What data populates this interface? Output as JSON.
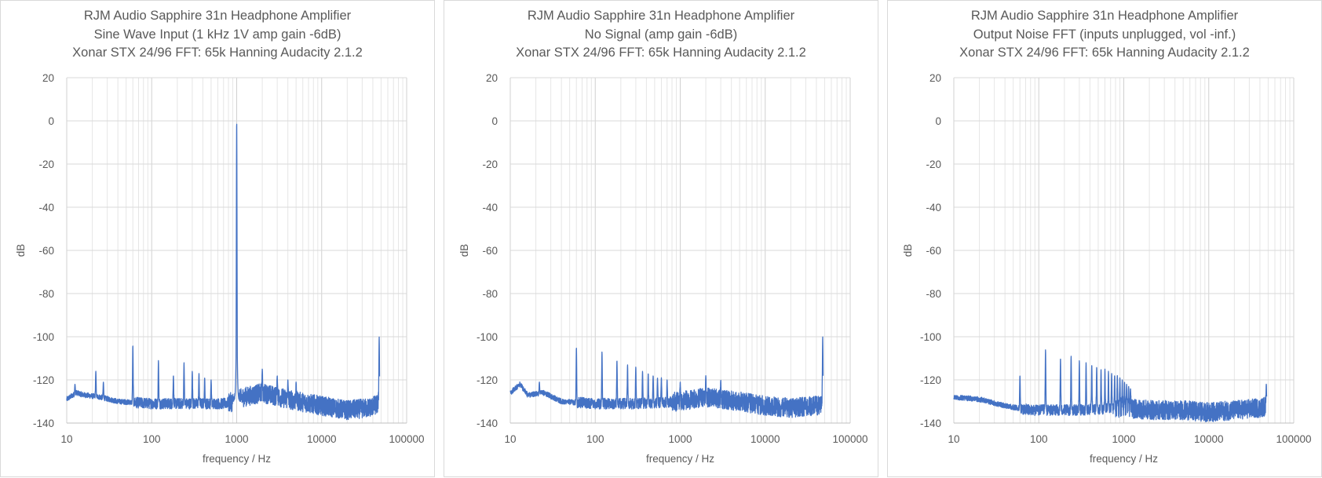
{
  "chart_data": [
    {
      "type": "line",
      "title": [
        "RJM Audio Sapphire 31n Headphone Amplifier",
        "Sine Wave Input (1 kHz 1V amp gain -6dB)",
        "Xonar STX 24/96 FFT: 65k Hanning Audacity  2.1.2"
      ],
      "xlabel": "frequency / Hz",
      "ylabel": "dB",
      "xscale": "log",
      "xlim": [
        10,
        100000
      ],
      "ylim": [
        -140,
        20
      ],
      "xticks": [
        "10",
        "100",
        "1000",
        "10000",
        "100000"
      ],
      "yticks": [
        "20",
        "0",
        "-20",
        "-40",
        "-60",
        "-80",
        "-100",
        "-120",
        "-140"
      ],
      "grid": true,
      "legend": "none",
      "series": [
        {
          "color": "#4472c4",
          "base_floor": [
            [
              10,
              -129
            ],
            [
              13,
              -126
            ],
            [
              16,
              -127
            ],
            [
              25,
              -128
            ],
            [
              40,
              -130
            ],
            [
              100,
              -131
            ],
            [
              300,
              -131
            ],
            [
              700,
              -131
            ],
            [
              950,
              -130
            ],
            [
              1200,
              -128
            ],
            [
              2000,
              -126
            ],
            [
              4000,
              -129
            ],
            [
              10000,
              -132
            ],
            [
              20000,
              -134
            ],
            [
              35000,
              -133
            ],
            [
              48000,
              -131
            ]
          ],
          "peaks": [
            [
              12.5,
              -122
            ],
            [
              22,
              -116
            ],
            [
              27,
              -121
            ],
            [
              60,
              -104
            ],
            [
              120,
              -111
            ],
            [
              180,
              -118
            ],
            [
              240,
              -112
            ],
            [
              300,
              -116
            ],
            [
              360,
              -117
            ],
            [
              420,
              -119
            ],
            [
              500,
              -120
            ],
            [
              1000,
              0
            ],
            [
              2000,
              -115
            ],
            [
              3000,
              -118
            ],
            [
              4000,
              -120
            ],
            [
              5000,
              -121
            ],
            [
              47500,
              -100
            ]
          ]
        }
      ]
    },
    {
      "type": "line",
      "title": [
        "RJM Audio Sapphire 31n Headphone Amplifier",
        "No Signal (amp gain -6dB)",
        "Xonar STX 24/96 FFT: 65k Hanning Audacity  2.1.2"
      ],
      "xlabel": "frequency / Hz",
      "ylabel": "dB",
      "xscale": "log",
      "xlim": [
        10,
        100000
      ],
      "ylim": [
        -140,
        20
      ],
      "xticks": [
        "10",
        "100",
        "1000",
        "10000",
        "100000"
      ],
      "yticks": [
        "20",
        "0",
        "-20",
        "-40",
        "-60",
        "-80",
        "-100",
        "-120",
        "-140"
      ],
      "grid": true,
      "legend": "none",
      "series": [
        {
          "color": "#4472c4",
          "base_floor": [
            [
              10,
              -126
            ],
            [
              13,
              -122
            ],
            [
              16,
              -127
            ],
            [
              25,
              -126
            ],
            [
              40,
              -130
            ],
            [
              100,
              -131
            ],
            [
              300,
              -131
            ],
            [
              1000,
              -130
            ],
            [
              2000,
              -128
            ],
            [
              5000,
              -130
            ],
            [
              10000,
              -132
            ],
            [
              20000,
              -133
            ],
            [
              40000,
              -132
            ],
            [
              48000,
              -131
            ]
          ],
          "peaks": [
            [
              12.5,
              -122
            ],
            [
              22,
              -121
            ],
            [
              60,
              -105
            ],
            [
              120,
              -107
            ],
            [
              180,
              -111
            ],
            [
              240,
              -113
            ],
            [
              300,
              -114
            ],
            [
              360,
              -116
            ],
            [
              420,
              -117
            ],
            [
              480,
              -118
            ],
            [
              540,
              -119
            ],
            [
              600,
              -119
            ],
            [
              700,
              -120
            ],
            [
              1000,
              -121
            ],
            [
              2000,
              -118
            ],
            [
              3000,
              -120
            ],
            [
              47500,
              -100
            ]
          ]
        }
      ]
    },
    {
      "type": "line",
      "title": [
        "RJM Audio Sapphire 31n Headphone Amplifier",
        "Output Noise FFT (inputs unplugged, vol -inf.)",
        "Xonar STX 24/96 FFT: 65k Hanning Audacity  2.1.2"
      ],
      "xlabel": "frequency / Hz",
      "ylabel": "dB",
      "xscale": "log",
      "xlim": [
        10,
        100000
      ],
      "ylim": [
        -140,
        20
      ],
      "xticks": [
        "10",
        "100",
        "1000",
        "10000",
        "100000"
      ],
      "yticks": [
        "20",
        "0",
        "-20",
        "-40",
        "-60",
        "-80",
        "-100",
        "-120",
        "-140"
      ],
      "grid": true,
      "legend": "none",
      "series": [
        {
          "color": "#4472c4",
          "base_floor": [
            [
              10,
              -128
            ],
            [
              20,
              -129
            ],
            [
              40,
              -132
            ],
            [
              80,
              -134
            ],
            [
              100,
              -134
            ],
            [
              300,
              -134
            ],
            [
              1000,
              -133
            ],
            [
              2000,
              -134
            ],
            [
              5000,
              -134
            ],
            [
              10000,
              -135
            ],
            [
              20000,
              -134
            ],
            [
              40000,
              -133
            ],
            [
              48000,
              -132
            ]
          ],
          "peaks": [
            [
              60,
              -118
            ],
            [
              120,
              -106
            ],
            [
              180,
              -110
            ],
            [
              240,
              -109
            ],
            [
              300,
              -111
            ],
            [
              360,
              -112
            ],
            [
              420,
              -113
            ],
            [
              480,
              -114
            ],
            [
              540,
              -115
            ],
            [
              600,
              -115
            ],
            [
              660,
              -116
            ],
            [
              720,
              -117
            ],
            [
              780,
              -118
            ],
            [
              840,
              -118
            ],
            [
              900,
              -119
            ],
            [
              960,
              -120
            ],
            [
              1020,
              -121
            ],
            [
              1080,
              -122
            ],
            [
              1140,
              -123
            ],
            [
              1200,
              -124
            ],
            [
              47500,
              -122
            ]
          ]
        }
      ]
    }
  ]
}
